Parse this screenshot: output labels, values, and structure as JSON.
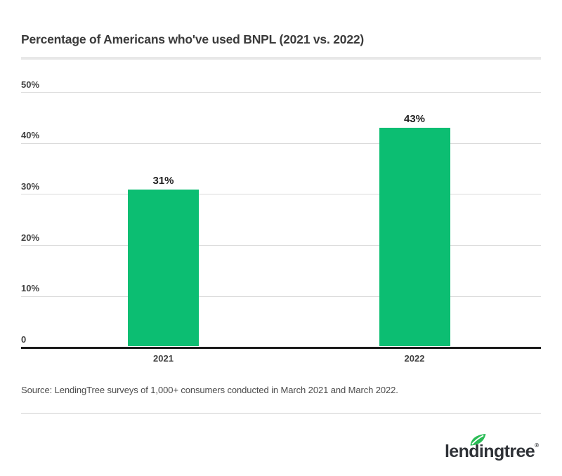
{
  "title": "Percentage of Americans who've used BNPL (2021 vs. 2022)",
  "chart_data": {
    "type": "bar",
    "categories": [
      "2021",
      "2022"
    ],
    "values": [
      31,
      43
    ],
    "value_labels": [
      "31%",
      "43%"
    ],
    "title": "Percentage of Americans who've used BNPL (2021 vs. 2022)",
    "xlabel": "",
    "ylabel": "",
    "ylim": [
      0,
      50
    ],
    "yticks": [
      0,
      10,
      20,
      30,
      40,
      50
    ],
    "ytick_labels": [
      "0",
      "10%",
      "20%",
      "30%",
      "40%",
      "50%"
    ],
    "grid": true,
    "legend": "none",
    "bar_color": "#0cbe72"
  },
  "source_note": "Source: LendingTree surveys of 1,000+ consumers conducted in March 2021 and March 2022.",
  "branding": {
    "logo_text": "lendingtree",
    "registered_mark": "®",
    "leaf_icon": "leaf-icon"
  },
  "colors": {
    "bar": "#0cbe72",
    "leaf": "#2abc55",
    "leaf_vein": "#ffffff",
    "logo_text": "#2f3237",
    "title_text": "#3a3a3a",
    "axis_text": "#414141",
    "value_text": "#232323",
    "grid_line": "#dadada",
    "axis_line": "#1c1c1c",
    "title_divider": "#e8e8e8",
    "footer_divider": "#cfcfcf",
    "background": "#ffffff"
  }
}
